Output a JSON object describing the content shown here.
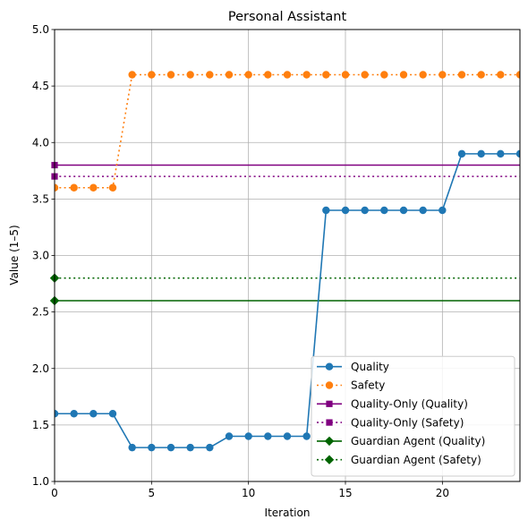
{
  "chart_data": {
    "type": "line",
    "title": "Personal Assistant",
    "xlabel": "Iteration",
    "ylabel": "Value (1–5)",
    "xlim": [
      0,
      24
    ],
    "ylim": [
      1.0,
      5.0
    ],
    "xticks": [
      0,
      5,
      10,
      15,
      20
    ],
    "xtick_labels": [
      "0",
      "5",
      "10",
      "15",
      "20"
    ],
    "yticks": [
      1.0,
      1.5,
      2.0,
      2.5,
      3.0,
      3.5,
      4.0,
      4.5,
      5.0
    ],
    "ytick_labels": [
      "1.0",
      "1.5",
      "2.0",
      "2.5",
      "3.0",
      "3.5",
      "4.0",
      "4.5",
      "5.0"
    ],
    "grid": true,
    "legend_position": "lower-right",
    "x": [
      0,
      1,
      2,
      3,
      4,
      5,
      6,
      7,
      8,
      9,
      10,
      11,
      12,
      13,
      14,
      15,
      16,
      17,
      18,
      19,
      20,
      21,
      22,
      23,
      24
    ],
    "series": [
      {
        "name": "Quality",
        "color": "#1f77b4",
        "linestyle": "solid",
        "marker": "circle",
        "values": [
          1.6,
          1.6,
          1.6,
          1.6,
          1.3,
          1.3,
          1.3,
          1.3,
          1.3,
          1.4,
          1.4,
          1.4,
          1.4,
          1.4,
          3.4,
          3.4,
          3.4,
          3.4,
          3.4,
          3.4,
          3.4,
          3.9,
          3.9,
          3.9,
          3.9
        ]
      },
      {
        "name": "Safety",
        "color": "#ff7f0e",
        "linestyle": "dotted",
        "marker": "circle",
        "values": [
          3.6,
          3.6,
          3.6,
          3.6,
          4.6,
          4.6,
          4.6,
          4.6,
          4.6,
          4.6,
          4.6,
          4.6,
          4.6,
          4.6,
          4.6,
          4.6,
          4.6,
          4.6,
          4.6,
          4.6,
          4.6,
          4.6,
          4.6,
          4.6,
          4.6
        ]
      }
    ],
    "reference_lines": [
      {
        "name": "Quality-Only (Quality)",
        "color": "#800080",
        "linestyle": "solid",
        "marker": "square",
        "value": 3.8
      },
      {
        "name": "Quality-Only (Safety)",
        "color": "#800080",
        "linestyle": "dotted",
        "marker": "square",
        "value": 3.7
      },
      {
        "name": "Guardian Agent (Quality)",
        "color": "#006400",
        "linestyle": "solid",
        "marker": "diamond",
        "value": 2.6
      },
      {
        "name": "Guardian Agent (Safety)",
        "color": "#006400",
        "linestyle": "dotted",
        "marker": "diamond",
        "value": 2.8
      }
    ]
  }
}
